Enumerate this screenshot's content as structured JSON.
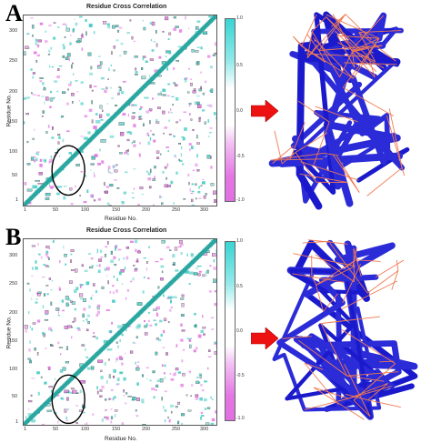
{
  "figure": {
    "panels": [
      {
        "letter": "A",
        "plot": {
          "title": "Residue Cross Correlation",
          "xlabel": "Residue No.",
          "ylabel": "Residue No.",
          "x_ticks": [
            "1",
            "50",
            "100",
            "150",
            "200",
            "250",
            "300"
          ],
          "y_ticks": [
            "300",
            "250",
            "200",
            "150",
            "100",
            "50",
            "1"
          ],
          "colorbar_ticks": [
            "1.0",
            "0.5",
            "0.0",
            "-0.5",
            "-1.0"
          ]
        },
        "arrow": "right-arrow",
        "structure": "protein-correlation-network"
      },
      {
        "letter": "B",
        "plot": {
          "title": "Residue Cross Correlation",
          "xlabel": "Residue No.",
          "ylabel": "Residue No.",
          "x_ticks": [
            "1",
            "50",
            "100",
            "150",
            "200",
            "250",
            "300"
          ],
          "y_ticks": [
            "300",
            "250",
            "200",
            "150",
            "100",
            "50",
            "1"
          ],
          "colorbar_ticks": [
            "1.0",
            "0.5",
            "0.0",
            "-0.5",
            "-1.0"
          ]
        },
        "arrow": "right-arrow",
        "structure": "protein-correlation-network"
      }
    ]
  },
  "chart_data": [
    {
      "type": "heatmap",
      "title": "Residue Cross Correlation",
      "xlabel": "Residue No.",
      "ylabel": "Residue No.",
      "xlim": [
        1,
        320
      ],
      "ylim": [
        1,
        320
      ],
      "colorbar_range": [
        -1.0,
        1.0
      ],
      "colors": {
        "positive": "#3cc8c0",
        "negative": "#e070e0",
        "diagonal": "#2aa7a0"
      },
      "highlight_ellipse_center": [
        75,
        60
      ]
    },
    {
      "type": "heatmap",
      "title": "Residue Cross Correlation",
      "xlabel": "Residue No.",
      "ylabel": "Residue No.",
      "xlim": [
        1,
        320
      ],
      "ylim": [
        1,
        320
      ],
      "colorbar_range": [
        -1.0,
        1.0
      ],
      "colors": {
        "positive": "#3cc8c0",
        "negative": "#e070e0",
        "diagonal": "#2aa7a0"
      },
      "highlight_ellipse_center": [
        75,
        45
      ]
    }
  ]
}
